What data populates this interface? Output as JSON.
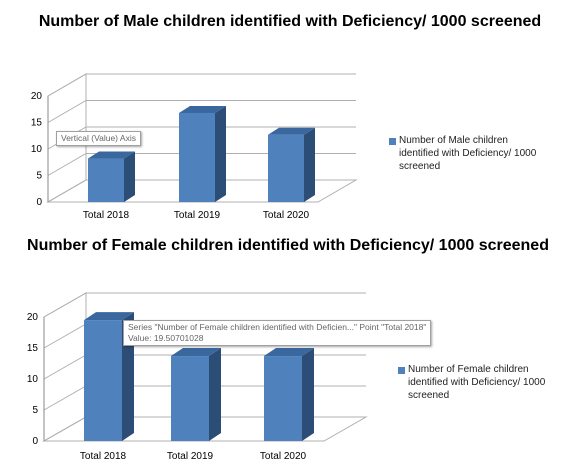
{
  "chart_data": [
    {
      "type": "bar",
      "title": "Number of Male children identified with Deficiency/ 1000 screened",
      "categories": [
        "Total 2018",
        "Total 2019",
        "Total 2020"
      ],
      "series": [
        {
          "name": "Number of Male children identified with Deficiency/ 1000 screened",
          "values": [
            8.2,
            16.8,
            12.7
          ]
        }
      ],
      "ylim": [
        0,
        20
      ],
      "yticks": [
        0,
        5,
        10,
        15,
        20
      ],
      "grid": true,
      "legend": "right",
      "color": "#4f81bd",
      "tooltip": {
        "lines": [
          "Vertical (Value) Axis"
        ]
      }
    },
    {
      "type": "bar",
      "title": "Number of Female children identified with Deficiency/ 1000 screened",
      "categories": [
        "Total 2018",
        "Total 2019",
        "Total 2020"
      ],
      "series": [
        {
          "name": "Number of Female children identified with Deficiency/ 1000 screened",
          "values": [
            19.5,
            13.7,
            13.7
          ]
        }
      ],
      "ylim": [
        0,
        20
      ],
      "yticks": [
        0,
        5,
        10,
        15,
        20
      ],
      "grid": true,
      "legend": "right",
      "color": "#4f81bd",
      "tooltip": {
        "lines": [
          "Series \"Number of Female children identified with Deficien...\" Point \"Total 2018\"",
          "Value: 19.50701028"
        ]
      }
    }
  ]
}
